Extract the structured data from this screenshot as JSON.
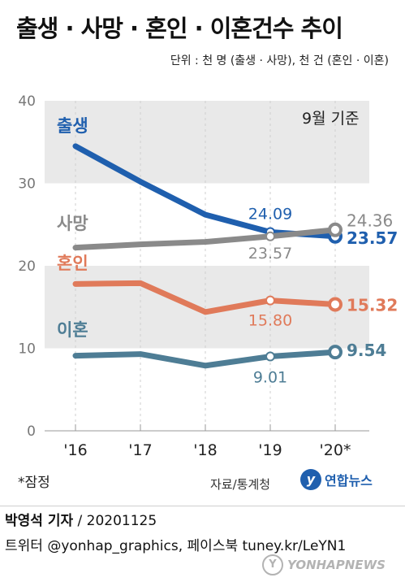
{
  "header": {
    "title": "출생 · 사망 · 혼인 · 이혼건수 추이",
    "subtitle": "단위 : 천 명 (출생 · 사망), 천 건 (혼인 · 이혼)",
    "note": "9월 기준"
  },
  "footer": {
    "footnote": "*잠정",
    "source": "자료/통계청",
    "logo_text": "연합뉴스",
    "logo_mark": "y",
    "credit_name": "박영석 기자",
    "credit_date": " / 20201125",
    "twitter": "트위터 @yonhap_graphics, 페이스북 tuney.kr/LeYN1",
    "watermark": "YONHAPNEWS",
    "watermark_mark": "Y"
  },
  "chart_data": {
    "type": "line",
    "categories": [
      "'16",
      "'17",
      "'18",
      "'19",
      "'20*"
    ],
    "ylim": [
      0,
      40
    ],
    "yticks": [
      0,
      10,
      20,
      30,
      40
    ],
    "grid": "alternating bands",
    "series": [
      {
        "name": "출생",
        "color": "#1f5fae",
        "values": [
          34.5,
          30.2,
          26.2,
          24.09,
          23.57
        ],
        "labels": [
          "",
          "",
          "",
          "24.09",
          "23.57"
        ]
      },
      {
        "name": "사망",
        "color": "#8a8a8a",
        "values": [
          22.2,
          22.6,
          22.9,
          23.57,
          24.36
        ],
        "labels": [
          "",
          "",
          "",
          "23.57",
          "24.36"
        ]
      },
      {
        "name": "혼인",
        "color": "#e07a5a",
        "values": [
          17.8,
          17.9,
          14.4,
          15.8,
          15.32
        ],
        "labels": [
          "",
          "",
          "",
          "15.80",
          "15.32"
        ]
      },
      {
        "name": "이혼",
        "color": "#4e7d95",
        "values": [
          9.1,
          9.3,
          7.9,
          9.01,
          9.54
        ],
        "labels": [
          "",
          "",
          "",
          "9.01",
          "9.54"
        ]
      }
    ]
  }
}
